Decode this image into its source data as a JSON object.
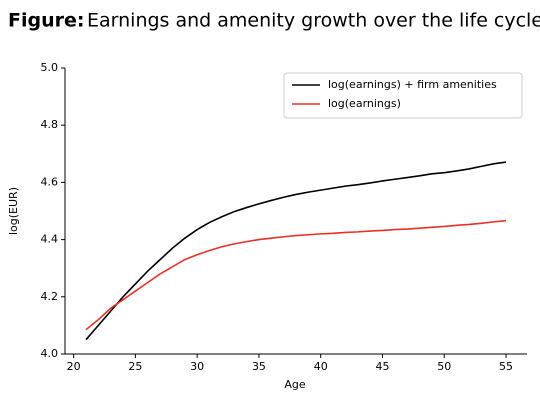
{
  "chart_data": {
    "type": "line",
    "figure_label": "Figure:",
    "title": "Earnings and amenity growth over the life cycle.",
    "x_label": "Age",
    "y_label": "log(EUR)",
    "x": [
      21,
      22,
      23,
      24,
      25,
      26,
      27,
      28,
      29,
      30,
      31,
      32,
      33,
      34,
      35,
      36,
      37,
      38,
      39,
      40,
      41,
      42,
      43,
      44,
      45,
      46,
      47,
      48,
      49,
      50,
      51,
      52,
      53,
      54,
      55
    ],
    "series": [
      {
        "name": "log(earnings) + firm amenities",
        "color": "#000000",
        "values": [
          4.05,
          4.1,
          4.15,
          4.2,
          4.245,
          4.29,
          4.33,
          4.37,
          4.405,
          4.435,
          4.46,
          4.48,
          4.498,
          4.512,
          4.525,
          4.537,
          4.548,
          4.558,
          4.566,
          4.573,
          4.58,
          4.587,
          4.592,
          4.598,
          4.605,
          4.611,
          4.617,
          4.623,
          4.63,
          4.634,
          4.64,
          4.647,
          4.656,
          4.665,
          4.671
        ]
      },
      {
        "name": "log(earnings)",
        "color": "#e8302a",
        "values": [
          4.085,
          4.12,
          4.16,
          4.19,
          4.22,
          4.25,
          4.28,
          4.305,
          4.33,
          4.347,
          4.362,
          4.375,
          4.385,
          4.393,
          4.4,
          4.405,
          4.41,
          4.414,
          4.417,
          4.42,
          4.422,
          4.425,
          4.427,
          4.43,
          4.432,
          4.435,
          4.437,
          4.44,
          4.443,
          4.446,
          4.45,
          4.453,
          4.457,
          4.462,
          4.466
        ]
      }
    ],
    "xlim": [
      19.3,
      56.7
    ],
    "xticks": [
      20,
      25,
      30,
      35,
      40,
      45,
      50,
      55
    ],
    "ylim": [
      4.0,
      5.0
    ],
    "yticks": [
      {
        "value": 4.0,
        "label": "4.0"
      },
      4.2,
      4.4,
      4.6,
      4.8,
      {
        "value": 5.0,
        "label": "5.0"
      }
    ],
    "legend": "upper right",
    "grid": false
  }
}
